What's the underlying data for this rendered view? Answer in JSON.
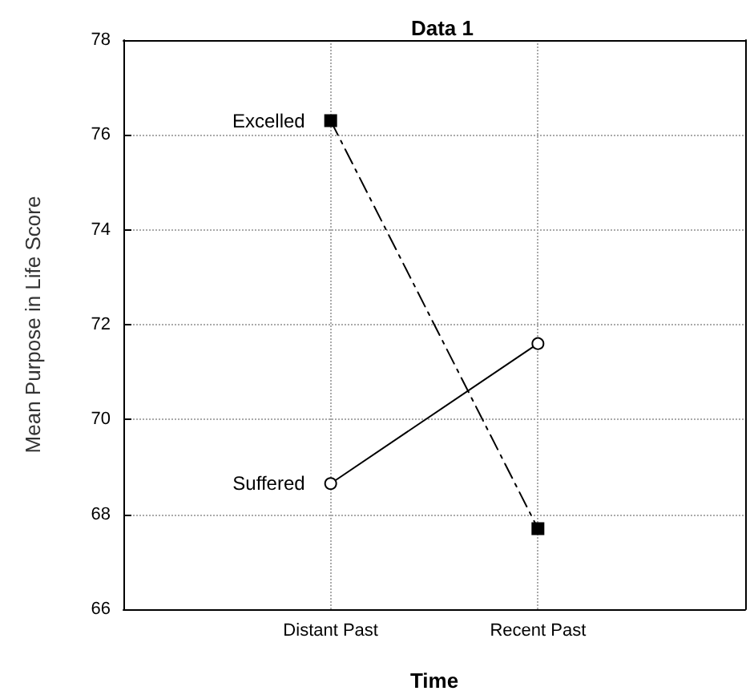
{
  "chart_data": {
    "type": "line",
    "title": "Data 1",
    "xlabel": "Time",
    "ylabel": "Mean Purpose in Life Score",
    "categories": [
      "Distant Past",
      "Recent Past"
    ],
    "series": [
      {
        "name": "Excelled",
        "color": "#000000",
        "values": [
          76.3,
          67.7
        ],
        "marker": "square",
        "line_style": "dashed"
      },
      {
        "name": "Suffered",
        "color": "#000000",
        "values": [
          68.65,
          71.6
        ],
        "marker": "circle",
        "line_style": "solid"
      }
    ],
    "ylim": [
      66,
      78
    ],
    "yticks": [
      66,
      68,
      70,
      72,
      74,
      76,
      78
    ],
    "grid": true,
    "legend": false
  }
}
